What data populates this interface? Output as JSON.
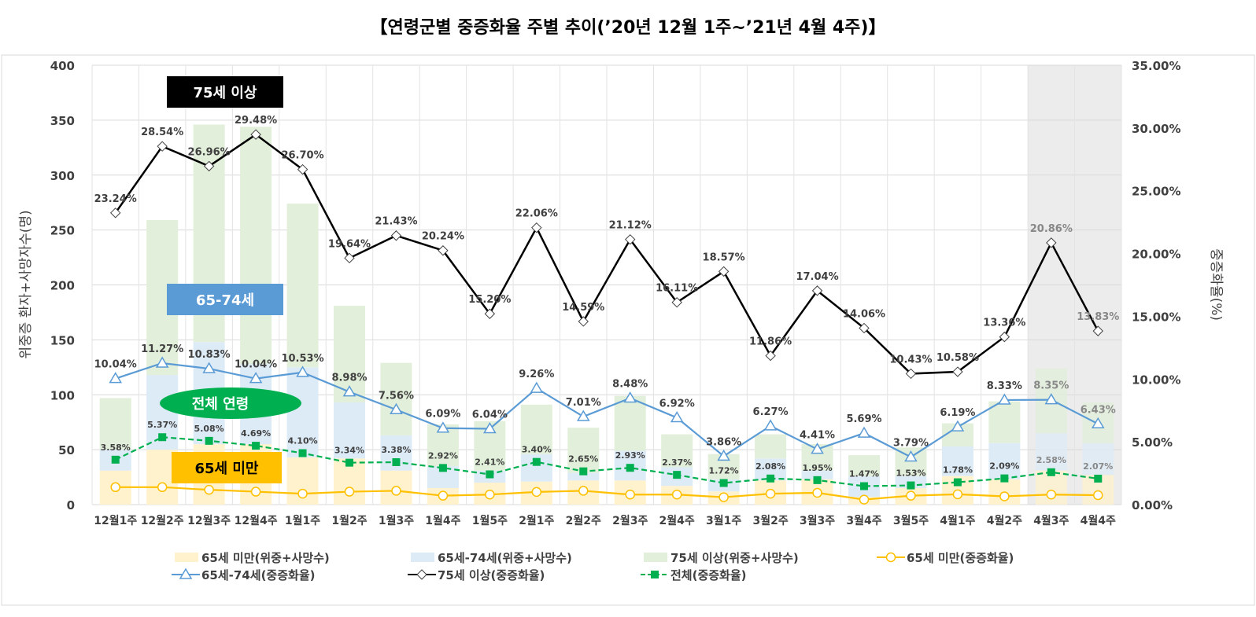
{
  "chart_data": {
    "type": "bar",
    "title": "【연령군별 중증화율 주별 추이(’20년 12월 1주~’21년 4월 4주)】",
    "ylabel": "위중증 환자+사망자수(명)",
    "y2label": "중증화율(%)",
    "ylim": [
      0,
      400
    ],
    "y2lim": [
      0,
      35
    ],
    "yticks": [
      "0",
      "50",
      "100",
      "150",
      "200",
      "250",
      "300",
      "350",
      "400"
    ],
    "y2ticks": [
      "0.00%",
      "5.00%",
      "10.00%",
      "15.00%",
      "20.00%",
      "25.00%",
      "30.00%",
      "35.00%"
    ],
    "grid": true,
    "legend_placement": "bottom",
    "shaded_categories": [
      "4월3주",
      "4월4주"
    ],
    "categories": [
      "12월1주",
      "12월2주",
      "12월3주",
      "12월4주",
      "1월1주",
      "1월2주",
      "1월3주",
      "1월4주",
      "1월5주",
      "2월1주",
      "2월2주",
      "2월3주",
      "2월4주",
      "3월1주",
      "3월2주",
      "3월3주",
      "3월4주",
      "3월5주",
      "4월1주",
      "4월2주",
      "4월3주",
      "4월4주"
    ],
    "bar_series": [
      {
        "name": "65세 미만(위중+사망수)",
        "color": "#FFF2CC",
        "values": [
          31,
          50,
          55,
          55,
          43,
          42,
          31,
          15,
          20,
          21,
          22,
          22,
          17,
          12,
          22,
          23,
          7,
          15,
          26,
          23,
          31,
          27
        ]
      },
      {
        "name": "65세-74세(위중+사망수)",
        "color": "#DDEBF7",
        "values": [
          19,
          68,
          93,
          73,
          82,
          51,
          32,
          20,
          11,
          25,
          7,
          27,
          17,
          11,
          20,
          8,
          19,
          11,
          27,
          33,
          34,
          29
        ]
      },
      {
        "name": "75세 이상(위중+사망수)",
        "color": "#E2EFDA",
        "values": [
          47,
          141,
          198,
          216,
          149,
          88,
          66,
          38,
          45,
          45,
          41,
          50,
          30,
          23,
          22,
          24,
          19,
          26,
          21,
          38,
          59,
          37
        ]
      }
    ],
    "line_series": [
      {
        "name": "65세 미만(중증화율)",
        "color": "#FFC000",
        "marker": "circle",
        "dashed": false,
        "labeled": false,
        "values": [
          1.39,
          1.39,
          1.18,
          1.03,
          0.87,
          1.03,
          1.1,
          0.71,
          0.8,
          1.01,
          1.1,
          0.8,
          0.8,
          0.59,
          0.87,
          0.94,
          0.4,
          0.71,
          0.82,
          0.66,
          0.8,
          0.75
        ]
      },
      {
        "name": "65세-74세(중증화율)",
        "color": "#5B9BD5",
        "marker": "triangle",
        "dashed": false,
        "labeled": true,
        "values": [
          10.04,
          11.27,
          10.83,
          10.04,
          10.53,
          8.98,
          7.56,
          6.09,
          6.04,
          9.26,
          7.01,
          8.48,
          6.92,
          3.86,
          6.27,
          4.41,
          5.69,
          3.79,
          6.19,
          8.33,
          8.35,
          6.43
        ]
      },
      {
        "name": "75세 이상(중증화율)",
        "color": "#000000",
        "marker": "diamond",
        "dashed": false,
        "labeled": true,
        "values": [
          23.24,
          28.54,
          26.96,
          29.48,
          26.7,
          19.64,
          21.43,
          20.24,
          15.2,
          22.06,
          14.59,
          21.12,
          16.11,
          18.57,
          11.86,
          17.04,
          14.06,
          10.43,
          10.58,
          13.36,
          20.86,
          13.83
        ]
      },
      {
        "name": "전체(중증화율)",
        "color": "#00B050",
        "marker": "square",
        "dashed": true,
        "labeled": true,
        "values": [
          3.58,
          5.37,
          5.08,
          4.69,
          4.1,
          3.34,
          3.38,
          2.92,
          2.41,
          3.4,
          2.65,
          2.93,
          2.37,
          1.72,
          2.08,
          1.95,
          1.47,
          1.53,
          1.78,
          2.09,
          2.58,
          2.07
        ]
      }
    ],
    "annotations": [
      {
        "text": "75세 이상",
        "color": "#000000"
      },
      {
        "text": "65-74세",
        "color": "#5B9BD5"
      },
      {
        "text": "전체 연령",
        "color": "#00B050"
      },
      {
        "text": "65세 미만",
        "color": "#FFC000"
      }
    ]
  }
}
